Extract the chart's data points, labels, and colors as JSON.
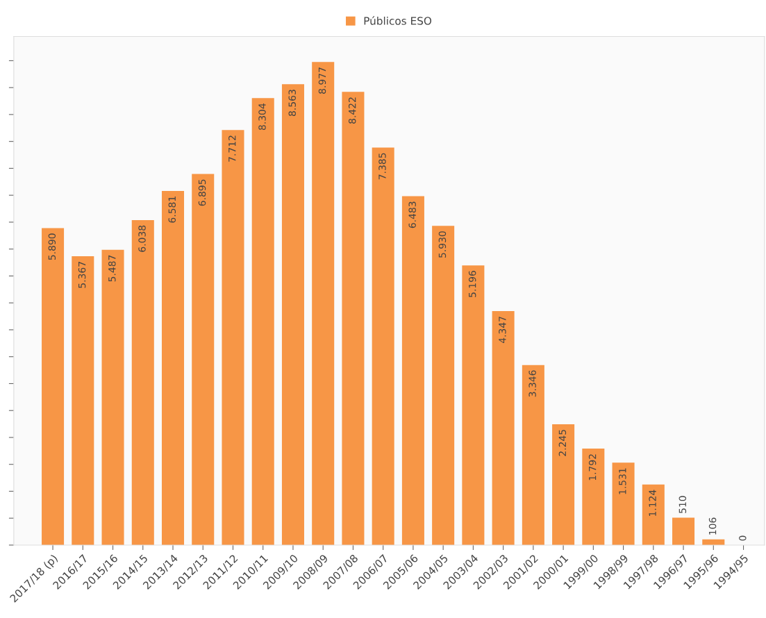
{
  "chart_data": {
    "type": "bar",
    "legend": "top",
    "categories": [
      "2017/18 (p)",
      "2016/17",
      "2015/16",
      "2014/15",
      "2013/14",
      "2012/13",
      "2011/12",
      "2010/11",
      "2009/10",
      "2008/09",
      "2007/08",
      "2006/07",
      "2005/06",
      "2004/05",
      "2003/04",
      "2002/03",
      "2001/02",
      "2000/01",
      "1999/00",
      "1998/99",
      "1997/98",
      "1996/97",
      "1995/96",
      "1994/95"
    ],
    "series": [
      {
        "name": "Públicos ESO",
        "color": "#f79646",
        "values": [
          5890,
          5367,
          5487,
          6038,
          6581,
          6895,
          7712,
          8304,
          8563,
          8977,
          8422,
          7385,
          6483,
          5930,
          5196,
          4347,
          3346,
          2245,
          1792,
          1531,
          1124,
          510,
          106,
          0
        ],
        "value_labels": [
          "5.890",
          "5.367",
          "5.487",
          "6.038",
          "6.581",
          "6.895",
          "7.712",
          "8.304",
          "8.563",
          "8.977",
          "8.422",
          "7.385",
          "6.483",
          "5.930",
          "5.196",
          "4.347",
          "3.346",
          "2.245",
          "1.792",
          "1.531",
          "1.124",
          "510",
          "106",
          "0"
        ]
      }
    ],
    "ylim": [
      0,
      9450
    ],
    "yticks": [
      {
        "value": 0,
        "label": null
      },
      {
        "value": 500,
        "label": null
      },
      {
        "value": 1000,
        "label": null
      },
      {
        "value": 1500,
        "label": null
      },
      {
        "value": 2000,
        "label": null
      },
      {
        "value": 2500,
        "label": null
      },
      {
        "value": 3000,
        "label": null
      },
      {
        "value": 3500,
        "label": null
      },
      {
        "value": 4000,
        "label": null
      },
      {
        "value": 4500,
        "label": null
      },
      {
        "value": 5000,
        "label": null
      },
      {
        "value": 5500,
        "label": null
      },
      {
        "value": 6000,
        "label": null
      },
      {
        "value": 6500,
        "label": null
      },
      {
        "value": 7000,
        "label": null
      },
      {
        "value": 7500,
        "label": null
      },
      {
        "value": 8000,
        "label": null
      },
      {
        "value": 8500,
        "label": null
      },
      {
        "value": 9000,
        "label": null
      }
    ],
    "tick_labels": "x",
    "grid": false
  }
}
